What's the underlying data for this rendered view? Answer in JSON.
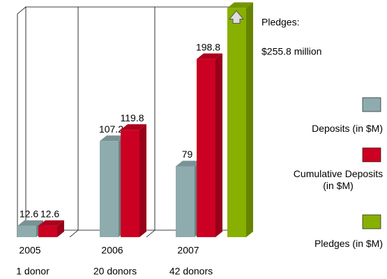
{
  "chart_data": {
    "type": "bar3d",
    "categories": [
      "2005",
      "2006",
      "2007"
    ],
    "category_notes": [
      "1 donor",
      "20 donors",
      "42 donors"
    ],
    "series": [
      {
        "name": "Deposits (in $M)",
        "color": "#8eacae",
        "values": [
          12.6,
          107.2,
          79
        ]
      },
      {
        "name": "Cumulative Deposits (in $M)",
        "color": "#cc0022",
        "values": [
          12.6,
          119.8,
          198.8
        ]
      },
      {
        "name": "Pledges (in $M)",
        "color": "#88b000",
        "values": [
          null,
          null,
          255.8
        ],
        "value_labels": [
          null,
          null,
          "$255.8 million"
        ]
      }
    ],
    "annotation": "Pledges:",
    "ylim": [
      0,
      260
    ],
    "legend": "right"
  }
}
